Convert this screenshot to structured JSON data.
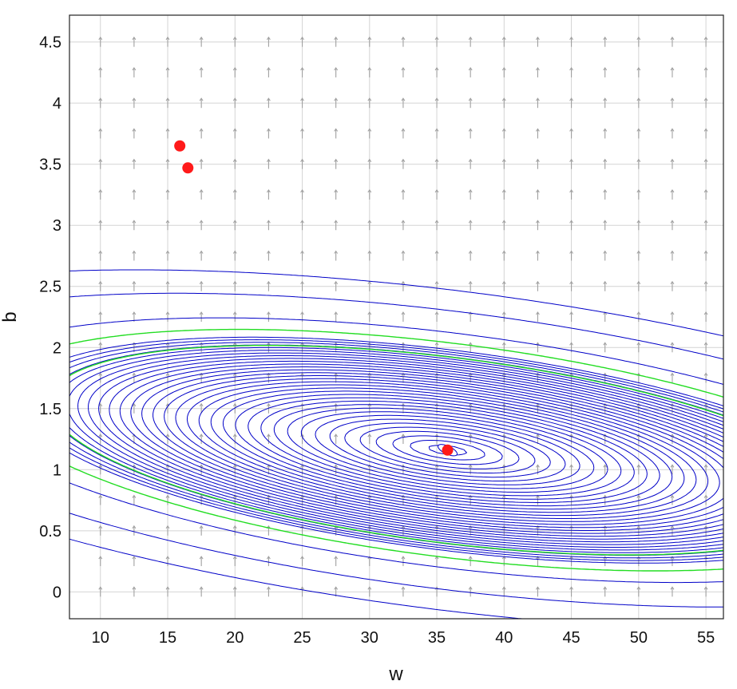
{
  "chart_data": {
    "type": "contour",
    "title": "",
    "xlabel": "w",
    "ylabel": "b",
    "xlim": [
      7.7,
      56.3
    ],
    "ylim": [
      -0.22,
      4.72
    ],
    "x_ticks": [
      10,
      15,
      20,
      25,
      30,
      35,
      40,
      45,
      50,
      55
    ],
    "y_ticks": [
      0,
      0.5,
      1,
      1.5,
      2,
      2.5,
      3,
      3.5,
      4,
      4.5
    ],
    "y_tick_labels": [
      "0",
      "0.5",
      "1",
      "1.5",
      "2",
      "2.5",
      "3",
      "3.5",
      "4",
      "4.5"
    ],
    "grid": true,
    "minimum": {
      "w": 35.8,
      "b": 1.16
    },
    "points": [
      {
        "w": 15.9,
        "b": 3.65
      },
      {
        "w": 16.5,
        "b": 3.47
      },
      {
        "w": 35.8,
        "b": 1.16
      }
    ],
    "colors": {
      "contour": "#0000c8",
      "highlight_contour": "#22dd22",
      "points": "#ff1a1a",
      "quiver": "#a0a0a0",
      "grid": "#d4d4d4"
    }
  }
}
